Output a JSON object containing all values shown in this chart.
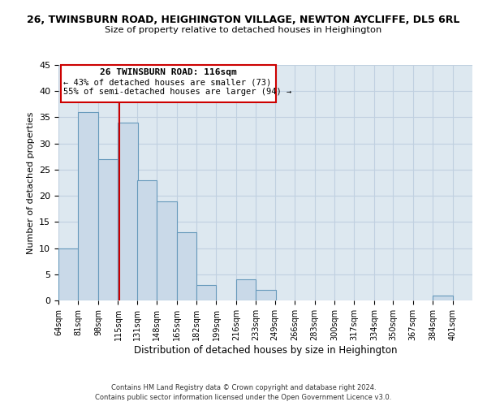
{
  "title": "26, TWINSBURN ROAD, HEIGHINGTON VILLAGE, NEWTON AYCLIFFE, DL5 6RL",
  "subtitle": "Size of property relative to detached houses in Heighington",
  "xlabel": "Distribution of detached houses by size in Heighington",
  "ylabel": "Number of detached properties",
  "footer_line1": "Contains HM Land Registry data © Crown copyright and database right 2024.",
  "footer_line2": "Contains public sector information licensed under the Open Government Licence v3.0.",
  "annotation_line1": "26 TWINSBURN ROAD: 116sqm",
  "annotation_line2": "← 43% of detached houses are smaller (73)",
  "annotation_line3": "55% of semi-detached houses are larger (94) →",
  "bar_left_edges": [
    64,
    81,
    98,
    115,
    131,
    148,
    165,
    182,
    199,
    216,
    233,
    249,
    266,
    283,
    300,
    317,
    334,
    350,
    367,
    384
  ],
  "bar_widths": [
    17,
    17,
    17,
    17,
    17,
    17,
    17,
    17,
    17,
    17,
    17,
    17,
    17,
    17,
    17,
    17,
    17,
    16,
    17,
    17
  ],
  "bar_heights": [
    10,
    36,
    27,
    34,
    23,
    19,
    13,
    3,
    0,
    4,
    2,
    0,
    0,
    0,
    0,
    0,
    0,
    0,
    0,
    1
  ],
  "bar_color": "#c9d9e8",
  "bar_edge_color": "#6699bb",
  "property_line_x": 116,
  "property_line_color": "#cc0000",
  "annotation_box_edge_color": "#cc0000",
  "xlim": [
    64,
    418
  ],
  "ylim": [
    0,
    45
  ],
  "xtick_positions": [
    64,
    81,
    98,
    115,
    131,
    148,
    165,
    182,
    199,
    216,
    233,
    249,
    266,
    283,
    300,
    317,
    334,
    350,
    367,
    384,
    401
  ],
  "xtick_labels": [
    "64sqm",
    "81sqm",
    "98sqm",
    "115sqm",
    "131sqm",
    "148sqm",
    "165sqm",
    "182sqm",
    "199sqm",
    "216sqm",
    "233sqm",
    "249sqm",
    "266sqm",
    "283sqm",
    "300sqm",
    "317sqm",
    "334sqm",
    "350sqm",
    "367sqm",
    "384sqm",
    "401sqm"
  ],
  "ytick_positions": [
    0,
    5,
    10,
    15,
    20,
    25,
    30,
    35,
    40,
    45
  ],
  "grid_color": "#c0d0e0",
  "background_color": "#dde8f0"
}
